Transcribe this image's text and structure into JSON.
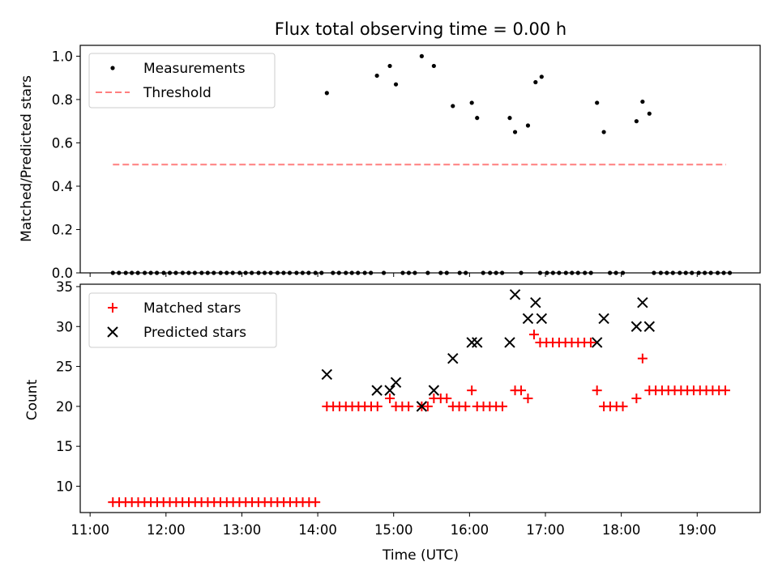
{
  "chart_data": [
    {
      "type": "scatter",
      "title": "Flux total observing time = 0.00 h",
      "xlabel": "",
      "ylabel": "Matched/Predicted stars",
      "xlim": [
        10.87,
        19.83
      ],
      "ylim": [
        0,
        1.05
      ],
      "yticks": [
        0.0,
        0.2,
        0.4,
        0.6,
        0.8,
        1.0
      ],
      "ytick_labels": [
        "0.0",
        "0.2",
        "0.4",
        "0.6",
        "0.8",
        "1.0"
      ],
      "legend_position": "top-left",
      "series": [
        {
          "name": "Measurements",
          "marker": "dot",
          "color": "#000000",
          "zero_times": [
            11.3,
            11.38,
            11.47,
            11.55,
            11.63,
            11.72,
            11.8,
            11.88,
            11.97,
            12.05,
            12.13,
            12.22,
            12.3,
            12.38,
            12.47,
            12.55,
            12.63,
            12.72,
            12.8,
            12.88,
            12.97,
            13.05,
            13.13,
            13.22,
            13.3,
            13.38,
            13.47,
            13.55,
            13.63,
            13.72,
            13.8,
            13.88,
            13.97,
            14.05,
            14.2,
            14.28,
            14.37,
            14.45,
            14.53,
            14.62,
            14.7,
            14.87,
            15.12,
            15.2,
            15.28,
            15.45,
            15.62,
            15.7,
            15.87,
            15.95,
            16.18,
            16.27,
            16.35,
            16.43,
            16.68,
            16.93,
            17.02,
            17.1,
            17.18,
            17.27,
            17.35,
            17.43,
            17.52,
            17.6,
            17.85,
            17.93,
            18.02,
            18.43,
            18.52,
            18.6,
            18.68,
            18.77,
            18.85,
            18.93,
            19.02,
            19.1,
            19.18,
            19.27,
            19.35,
            19.43
          ],
          "points": [
            {
              "x": 14.12,
              "y": 0.83
            },
            {
              "x": 14.78,
              "y": 0.91
            },
            {
              "x": 14.95,
              "y": 0.955
            },
            {
              "x": 15.03,
              "y": 0.87
            },
            {
              "x": 15.37,
              "y": 1.0
            },
            {
              "x": 15.53,
              "y": 0.955
            },
            {
              "x": 15.78,
              "y": 0.77
            },
            {
              "x": 16.03,
              "y": 0.785
            },
            {
              "x": 16.1,
              "y": 0.715
            },
            {
              "x": 16.53,
              "y": 0.715
            },
            {
              "x": 16.6,
              "y": 0.65
            },
            {
              "x": 16.77,
              "y": 0.68
            },
            {
              "x": 16.87,
              "y": 0.88
            },
            {
              "x": 16.95,
              "y": 0.905
            },
            {
              "x": 17.68,
              "y": 0.785
            },
            {
              "x": 17.77,
              "y": 0.65
            },
            {
              "x": 18.2,
              "y": 0.7
            },
            {
              "x": 18.28,
              "y": 0.79
            },
            {
              "x": 18.37,
              "y": 0.735
            }
          ]
        },
        {
          "name": "Threshold",
          "type": "line",
          "style": "dashed",
          "color": "#ff7f7f",
          "x": [
            11.3,
            19.38
          ],
          "y": [
            0.5,
            0.5
          ]
        }
      ]
    },
    {
      "type": "scatter",
      "title": "",
      "xlabel": "Time (UTC)",
      "ylabel": "Count",
      "xlim": [
        10.87,
        19.83
      ],
      "ylim": [
        6.7,
        35.3
      ],
      "yticks": [
        10,
        15,
        20,
        25,
        30,
        35
      ],
      "ytick_labels": [
        "10",
        "15",
        "20",
        "25",
        "30",
        "35"
      ],
      "xticks": [
        11,
        12,
        13,
        14,
        15,
        16,
        17,
        18,
        19
      ],
      "xtick_labels": [
        "11:00",
        "12:00",
        "13:00",
        "14:00",
        "15:00",
        "16:00",
        "17:00",
        "18:00",
        "19:00"
      ],
      "legend_position": "top-left",
      "series": [
        {
          "name": "Matched stars",
          "marker": "plus",
          "color": "#ff0000",
          "segments": [
            {
              "from": 11.3,
              "to": 14.05,
              "step": 0.0834,
              "y": 8
            },
            {
              "from": 14.12,
              "to": 14.87,
              "step": 0.0834,
              "y": 20
            },
            {
              "from": 15.03,
              "to": 15.28,
              "step": 0.0834,
              "y": 20
            },
            {
              "from": 15.78,
              "to": 15.95,
              "step": 0.0834,
              "y": 20
            },
            {
              "from": 16.1,
              "to": 16.5,
              "step": 0.0834,
              "y": 20
            },
            {
              "from": 16.93,
              "to": 17.6,
              "step": 0.0834,
              "y": 28
            },
            {
              "from": 17.77,
              "to": 18.1,
              "step": 0.0834,
              "y": 20
            },
            {
              "from": 18.37,
              "to": 19.4,
              "step": 0.0834,
              "y": 22
            }
          ],
          "points": [
            {
              "x": 14.95,
              "y": 21
            },
            {
              "x": 15.37,
              "y": 20
            },
            {
              "x": 15.45,
              "y": 20
            },
            {
              "x": 15.53,
              "y": 21
            },
            {
              "x": 15.62,
              "y": 21
            },
            {
              "x": 15.7,
              "y": 21
            },
            {
              "x": 16.03,
              "y": 22
            },
            {
              "x": 16.6,
              "y": 22
            },
            {
              "x": 16.68,
              "y": 22
            },
            {
              "x": 16.77,
              "y": 21
            },
            {
              "x": 16.85,
              "y": 29
            },
            {
              "x": 17.68,
              "y": 22
            },
            {
              "x": 18.2,
              "y": 21
            },
            {
              "x": 18.28,
              "y": 26
            }
          ]
        },
        {
          "name": "Predicted stars",
          "marker": "x",
          "color": "#000000",
          "points": [
            {
              "x": 14.12,
              "y": 24
            },
            {
              "x": 14.78,
              "y": 22
            },
            {
              "x": 14.95,
              "y": 22
            },
            {
              "x": 15.03,
              "y": 23
            },
            {
              "x": 15.37,
              "y": 20
            },
            {
              "x": 15.53,
              "y": 22
            },
            {
              "x": 15.78,
              "y": 26
            },
            {
              "x": 16.03,
              "y": 28
            },
            {
              "x": 16.1,
              "y": 28
            },
            {
              "x": 16.53,
              "y": 28
            },
            {
              "x": 16.6,
              "y": 34
            },
            {
              "x": 16.77,
              "y": 31
            },
            {
              "x": 16.87,
              "y": 33
            },
            {
              "x": 16.95,
              "y": 31
            },
            {
              "x": 17.68,
              "y": 28
            },
            {
              "x": 17.77,
              "y": 31
            },
            {
              "x": 18.2,
              "y": 30
            },
            {
              "x": 18.28,
              "y": 33
            },
            {
              "x": 18.37,
              "y": 30
            }
          ]
        }
      ]
    }
  ]
}
